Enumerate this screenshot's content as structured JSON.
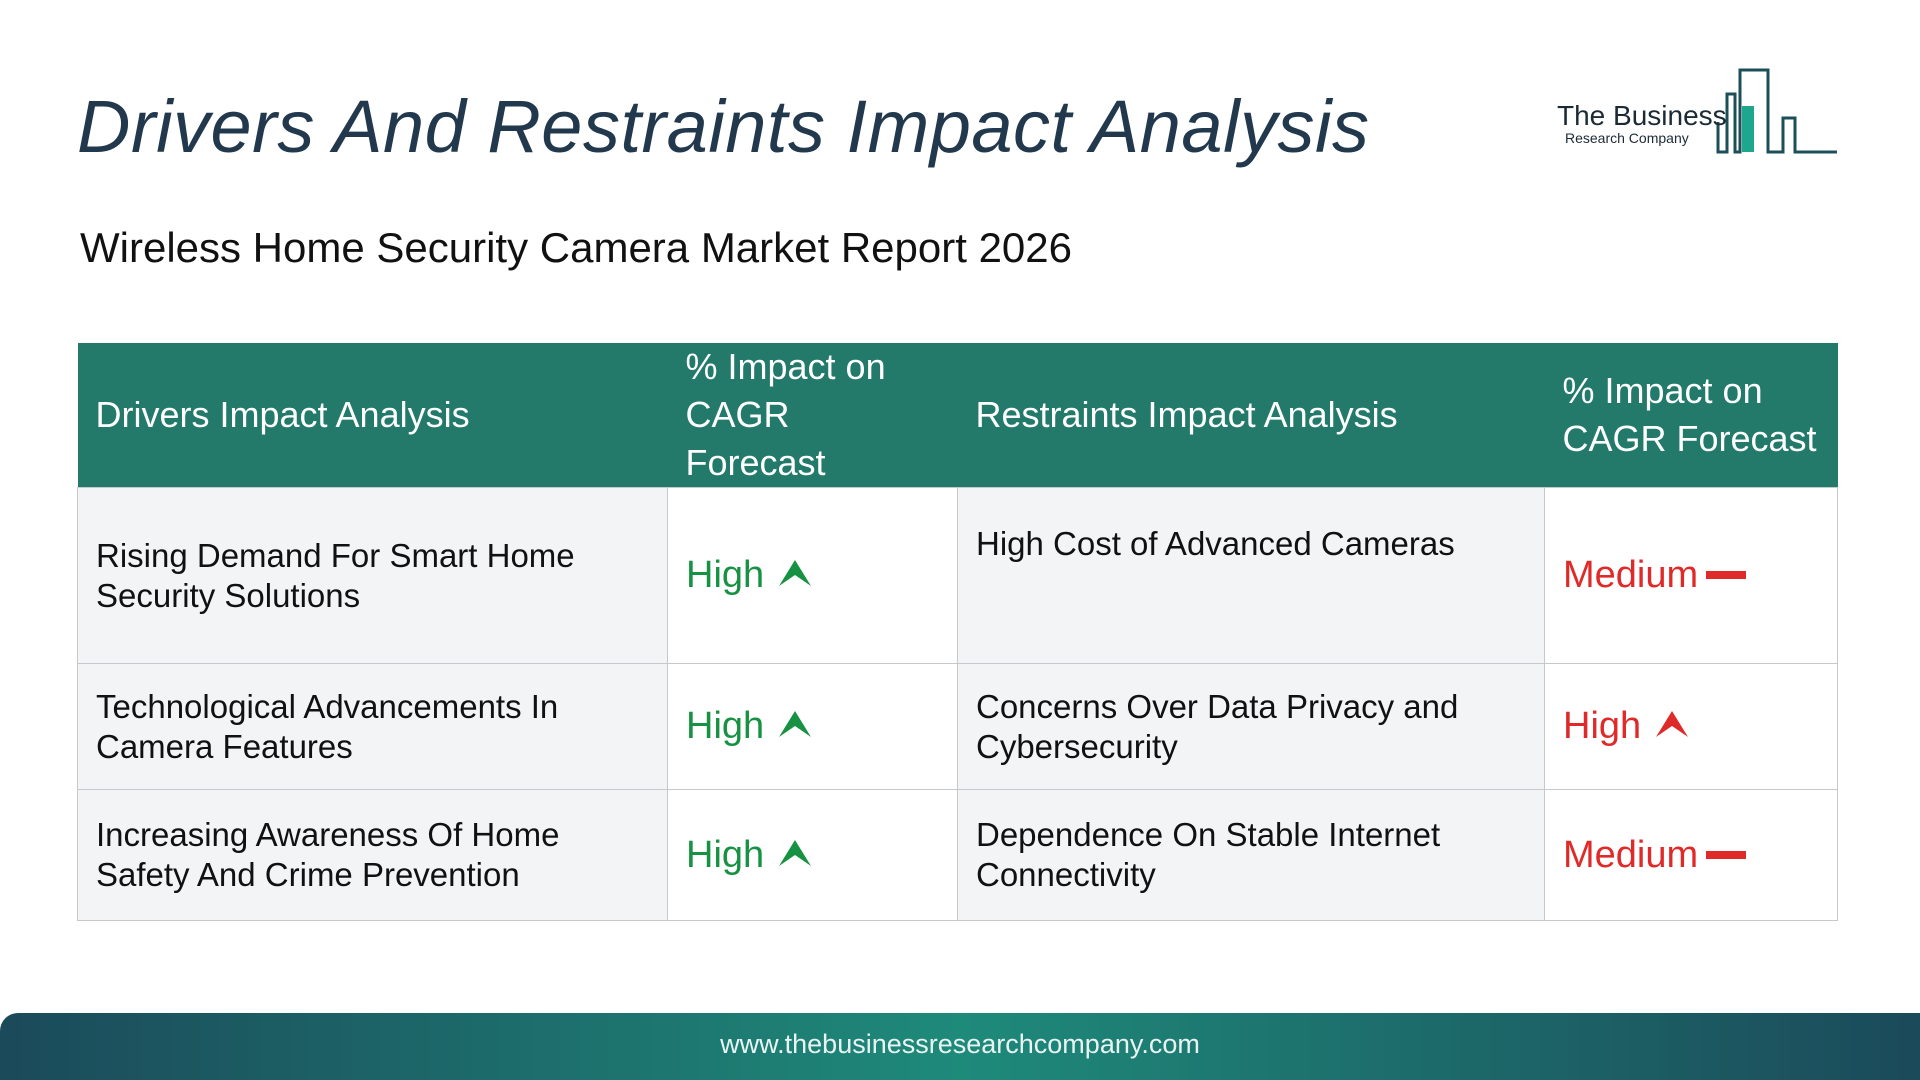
{
  "title": "Drivers And Restraints Impact Analysis",
  "subtitle": "Wireless Home Security Camera Market Report 2026",
  "logo": {
    "line1": "The Business",
    "line2": "Research Company"
  },
  "table": {
    "headers": {
      "drivers": "Drivers Impact Analysis",
      "drivers_impact": "% Impact on CAGR Forecast",
      "restraints": "Restraints Impact Analysis",
      "restraints_impact": "% Impact on CAGR Forecast"
    },
    "rows": [
      {
        "driver": "Rising Demand For Smart Home Security Solutions",
        "driver_impact": {
          "label": "High",
          "indicator": "arrow-up",
          "color": "#179142"
        },
        "restraint": "High Cost of Advanced Cameras",
        "restraint_impact": {
          "label": "Medium",
          "indicator": "dash",
          "color": "#e02a2a"
        }
      },
      {
        "driver": "Technological Advancements In Camera Features",
        "driver_impact": {
          "label": "High",
          "indicator": "arrow-up",
          "color": "#179142"
        },
        "restraint": "Concerns Over Data Privacy and Cybersecurity",
        "restraint_impact": {
          "label": "High",
          "indicator": "arrow-up",
          "color": "#e02a2a"
        }
      },
      {
        "driver": "Increasing Awareness Of Home Safety And Crime Prevention",
        "driver_impact": {
          "label": "High",
          "indicator": "arrow-up",
          "color": "#179142"
        },
        "restraint": "Dependence On Stable Internet Connectivity",
        "restraint_impact": {
          "label": "Medium",
          "indicator": "dash",
          "color": "#e02a2a"
        }
      }
    ]
  },
  "footer": {
    "url": "www.thebusinessresearchcompany.com"
  },
  "colors": {
    "header_bg": "#237a6b",
    "title": "#22384c",
    "high_driver": "#179142",
    "restraint": "#e02a2a"
  }
}
